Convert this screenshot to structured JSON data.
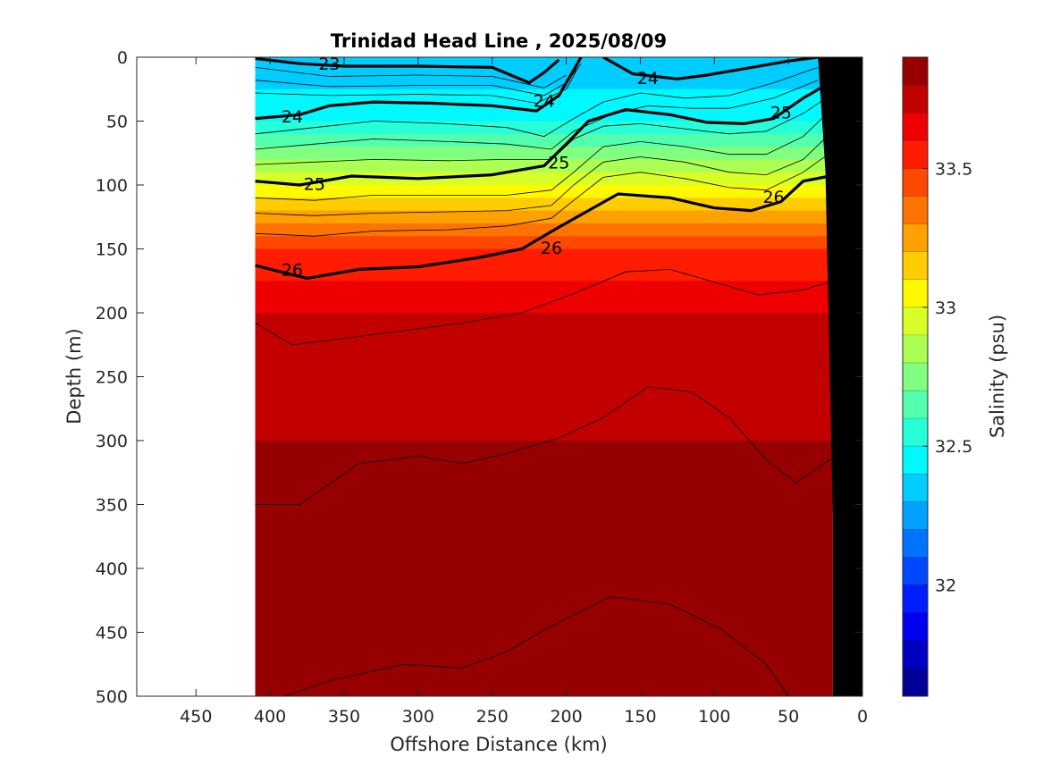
{
  "chart_data": {
    "type": "heatmap",
    "title": "Trinidad Head Line , 2025/08/09",
    "xlabel": "Offshore Distance (km)",
    "ylabel": "Depth (m)",
    "xlim": [
      490,
      0
    ],
    "ylim": [
      0,
      500
    ],
    "x_reversed": true,
    "y_reversed": true,
    "x_ticks": [
      450,
      400,
      350,
      300,
      250,
      200,
      150,
      100,
      50,
      0
    ],
    "y_ticks": [
      0,
      50,
      100,
      150,
      200,
      250,
      300,
      350,
      400,
      450,
      500
    ],
    "data_extent_x": [
      410,
      20
    ],
    "colorbar": {
      "label": "Salinity (psu)",
      "range": [
        31.6,
        33.9
      ],
      "ticks": [
        32,
        32.5,
        33,
        33.5
      ],
      "colormap": "jet",
      "levels": 23
    },
    "salinity_layers": [
      {
        "depth": 0,
        "value": 32.3
      },
      {
        "depth": 50,
        "value": 32.5
      },
      {
        "depth": 100,
        "value": 33.0
      },
      {
        "depth": 150,
        "value": 33.5
      },
      {
        "depth": 200,
        "value": 33.7
      },
      {
        "depth": 300,
        "value": 33.8
      },
      {
        "depth": 450,
        "value": 33.85
      }
    ],
    "density_contours": [
      {
        "label": "23",
        "points": [
          [
            410,
            1
          ],
          [
            380,
            5
          ],
          [
            350,
            7
          ],
          [
            300,
            7
          ],
          [
            250,
            8
          ],
          [
            225,
            20
          ],
          [
            215,
            12
          ],
          [
            205,
            2
          ]
        ],
        "labels_at": [
          [
            360,
            5
          ]
        ]
      },
      {
        "label": "24",
        "points": [
          [
            410,
            48
          ],
          [
            380,
            45
          ],
          [
            360,
            38
          ],
          [
            330,
            35
          ],
          [
            290,
            36
          ],
          [
            250,
            38
          ],
          [
            220,
            42
          ],
          [
            205,
            30
          ],
          [
            195,
            10
          ],
          [
            190,
            0
          ]
        ],
        "labels_at": [
          [
            385,
            46
          ],
          [
            215,
            34
          ]
        ]
      },
      {
        "label": "24",
        "points": [
          [
            175,
            0
          ],
          [
            155,
            13
          ],
          [
            125,
            17
          ],
          [
            105,
            14
          ],
          [
            80,
            9
          ],
          [
            50,
            3
          ],
          [
            30,
            0
          ]
        ],
        "labels_at": [
          [
            145,
            16
          ]
        ]
      },
      {
        "label": "25",
        "points": [
          [
            410,
            97
          ],
          [
            380,
            100
          ],
          [
            345,
            93
          ],
          [
            300,
            95
          ],
          [
            250,
            92
          ],
          [
            215,
            85
          ],
          [
            200,
            68
          ],
          [
            185,
            50
          ],
          [
            160,
            41
          ],
          [
            130,
            45
          ],
          [
            105,
            51
          ],
          [
            80,
            52
          ],
          [
            60,
            48
          ],
          [
            40,
            32
          ],
          [
            22,
            20
          ]
        ],
        "labels_at": [
          [
            370,
            99
          ],
          [
            205,
            82
          ],
          [
            55,
            43
          ]
        ]
      },
      {
        "label": "26",
        "points": [
          [
            410,
            163
          ],
          [
            375,
            173
          ],
          [
            340,
            166
          ],
          [
            300,
            164
          ],
          [
            260,
            157
          ],
          [
            230,
            150
          ],
          [
            205,
            133
          ],
          [
            185,
            120
          ],
          [
            165,
            107
          ],
          [
            130,
            110
          ],
          [
            100,
            118
          ],
          [
            75,
            120
          ],
          [
            55,
            113
          ],
          [
            40,
            97
          ],
          [
            22,
            93
          ]
        ],
        "labels_at": [
          [
            385,
            166
          ],
          [
            210,
            149
          ],
          [
            60,
            109
          ]
        ]
      }
    ],
    "thin_contours": [
      [
        [
          410,
          8
        ],
        [
          360,
          15
        ],
        [
          300,
          14
        ],
        [
          250,
          15
        ],
        [
          215,
          24
        ],
        [
          200,
          14
        ]
      ],
      [
        [
          410,
          18
        ],
        [
          360,
          23
        ],
        [
          300,
          22
        ],
        [
          250,
          22
        ],
        [
          215,
          30
        ],
        [
          200,
          20
        ],
        [
          190,
          5
        ]
      ],
      [
        [
          410,
          28
        ],
        [
          360,
          30
        ],
        [
          300,
          29
        ],
        [
          250,
          30
        ],
        [
          220,
          36
        ],
        [
          200,
          25
        ],
        [
          192,
          8
        ]
      ],
      [
        [
          410,
          60
        ],
        [
          370,
          55
        ],
        [
          330,
          50
        ],
        [
          280,
          52
        ],
        [
          240,
          55
        ],
        [
          215,
          62
        ],
        [
          195,
          48
        ],
        [
          175,
          35
        ],
        [
          150,
          28
        ],
        [
          120,
          32
        ],
        [
          90,
          30
        ],
        [
          60,
          20
        ],
        [
          30,
          8
        ]
      ],
      [
        [
          410,
          72
        ],
        [
          370,
          68
        ],
        [
          330,
          64
        ],
        [
          280,
          66
        ],
        [
          240,
          68
        ],
        [
          210,
          72
        ],
        [
          195,
          58
        ],
        [
          170,
          45
        ],
        [
          145,
          38
        ],
        [
          115,
          40
        ],
        [
          90,
          40
        ],
        [
          60,
          32
        ],
        [
          30,
          18
        ]
      ],
      [
        [
          410,
          84
        ],
        [
          370,
          82
        ],
        [
          330,
          80
        ],
        [
          280,
          81
        ],
        [
          240,
          80
        ],
        [
          210,
          80
        ],
        [
          195,
          64
        ],
        [
          175,
          54
        ],
        [
          150,
          52
        ],
        [
          120,
          56
        ],
        [
          90,
          60
        ],
        [
          65,
          58
        ],
        [
          40,
          44
        ],
        [
          22,
          30
        ]
      ],
      [
        [
          410,
          110
        ],
        [
          370,
          112
        ],
        [
          330,
          108
        ],
        [
          280,
          108
        ],
        [
          240,
          108
        ],
        [
          210,
          104
        ],
        [
          195,
          90
        ],
        [
          175,
          70
        ],
        [
          150,
          66
        ],
        [
          120,
          70
        ],
        [
          90,
          76
        ],
        [
          65,
          76
        ],
        [
          40,
          62
        ],
        [
          22,
          42
        ]
      ],
      [
        [
          410,
          122
        ],
        [
          370,
          124
        ],
        [
          330,
          122
        ],
        [
          280,
          121
        ],
        [
          240,
          120
        ],
        [
          210,
          116
        ],
        [
          195,
          100
        ],
        [
          175,
          82
        ],
        [
          150,
          78
        ],
        [
          120,
          82
        ],
        [
          90,
          90
        ],
        [
          65,
          92
        ],
        [
          40,
          80
        ],
        [
          22,
          60
        ]
      ],
      [
        [
          410,
          138
        ],
        [
          370,
          140
        ],
        [
          330,
          136
        ],
        [
          280,
          135
        ],
        [
          240,
          132
        ],
        [
          210,
          126
        ],
        [
          195,
          112
        ],
        [
          175,
          94
        ],
        [
          150,
          90
        ],
        [
          120,
          95
        ],
        [
          90,
          102
        ],
        [
          65,
          104
        ],
        [
          40,
          90
        ],
        [
          22,
          75
        ]
      ],
      [
        [
          410,
          208
        ],
        [
          385,
          225
        ],
        [
          350,
          220
        ],
        [
          310,
          214
        ],
        [
          270,
          208
        ],
        [
          230,
          200
        ],
        [
          195,
          185
        ],
        [
          160,
          168
        ],
        [
          130,
          166
        ],
        [
          100,
          176
        ],
        [
          70,
          186
        ],
        [
          40,
          182
        ],
        [
          20,
          175
        ]
      ],
      [
        [
          410,
          350
        ],
        [
          380,
          350
        ],
        [
          340,
          318
        ],
        [
          300,
          312
        ],
        [
          270,
          318
        ],
        [
          240,
          310
        ],
        [
          205,
          298
        ],
        [
          175,
          282
        ],
        [
          145,
          258
        ],
        [
          115,
          262
        ],
        [
          90,
          282
        ],
        [
          65,
          315
        ],
        [
          45,
          333
        ],
        [
          22,
          315
        ]
      ],
      [
        [
          390,
          500
        ],
        [
          360,
          488
        ],
        [
          310,
          475
        ],
        [
          270,
          478
        ],
        [
          240,
          465
        ],
        [
          210,
          445
        ],
        [
          170,
          422
        ],
        [
          130,
          428
        ],
        [
          95,
          448
        ],
        [
          65,
          475
        ],
        [
          50,
          500
        ]
      ]
    ],
    "bathymetry": [
      [
        20,
        500
      ],
      [
        20,
        360
      ],
      [
        25,
        90
      ],
      [
        30,
        0
      ],
      [
        0,
        0
      ],
      [
        0,
        500
      ]
    ]
  }
}
